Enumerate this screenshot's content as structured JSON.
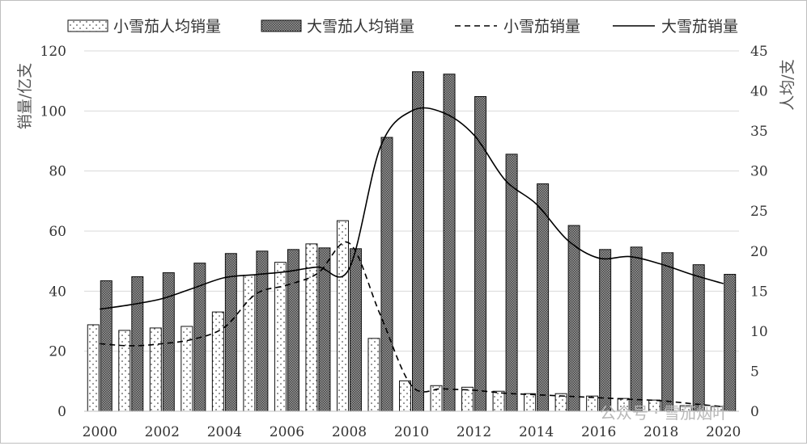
{
  "chart_data": {
    "type": "bar",
    "categories": [
      "2000",
      "2001",
      "2002",
      "2003",
      "2004",
      "2005",
      "2006",
      "2007",
      "2008",
      "2009",
      "2010",
      "2011",
      "2012",
      "2013",
      "2014",
      "2015",
      "2016",
      "2017",
      "2018",
      "2019",
      "2020"
    ],
    "x_tick_labels": [
      "2000",
      "2002",
      "2004",
      "2006",
      "2008",
      "2010",
      "2012",
      "2014",
      "2016",
      "2018",
      "2020"
    ],
    "series": [
      {
        "name": "小雪茄人均销量",
        "kind": "bar",
        "axis": "right",
        "pattern": "dots",
        "values": [
          10.8,
          10.1,
          10.4,
          10.6,
          12.4,
          17.0,
          18.6,
          20.9,
          23.8,
          9.1,
          3.8,
          3.2,
          3.0,
          2.5,
          2.2,
          2.2,
          1.9,
          1.6,
          1.4,
          0.7,
          0.6
        ]
      },
      {
        "name": "大雪茄人均销量",
        "kind": "bar",
        "axis": "right",
        "pattern": "crosshatch",
        "values": [
          16.3,
          16.8,
          17.3,
          18.5,
          19.7,
          20.0,
          20.2,
          20.4,
          20.3,
          34.2,
          42.4,
          42.1,
          39.3,
          32.1,
          28.4,
          23.2,
          20.2,
          20.5,
          19.8,
          18.3,
          17.1
        ]
      },
      {
        "name": "小雪茄销量",
        "kind": "line",
        "style": "dashed",
        "axis": "left",
        "values": [
          22.5,
          21.8,
          22.5,
          24.0,
          28.0,
          39.0,
          42.0,
          46.0,
          56.0,
          32.0,
          8.5,
          7.5,
          7.0,
          6.0,
          5.5,
          5.0,
          4.5,
          4.0,
          3.5,
          2.5,
          1.5
        ]
      },
      {
        "name": "大雪茄销量",
        "kind": "line",
        "style": "solid",
        "axis": "left",
        "values": [
          34.0,
          35.5,
          37.5,
          41.0,
          44.5,
          45.5,
          46.5,
          48.0,
          47.5,
          88.0,
          100.0,
          99.5,
          92.0,
          77.0,
          69.0,
          57.0,
          51.0,
          51.5,
          49.0,
          45.5,
          42.5
        ]
      }
    ],
    "y_left": {
      "label": "销量/亿支",
      "lim": [
        0,
        120
      ],
      "ticks": [
        0,
        20,
        40,
        60,
        80,
        100,
        120
      ]
    },
    "y_right": {
      "label": "人均/支",
      "lim": [
        0,
        45
      ],
      "ticks": [
        0,
        5,
        10,
        15,
        20,
        25,
        30,
        35,
        40,
        45
      ]
    },
    "grid": true,
    "legend_position": "top"
  },
  "watermark": {
    "text": "公众号 · 雪茄烟叶"
  }
}
